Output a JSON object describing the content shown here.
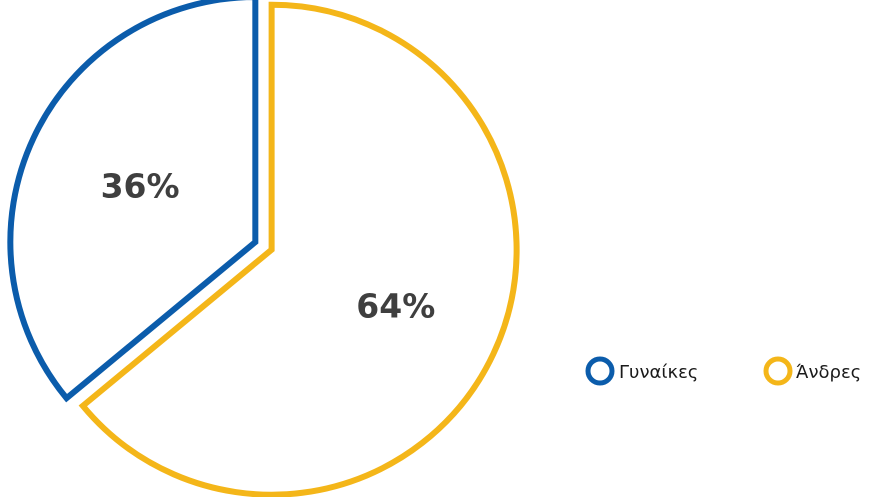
{
  "chart_data": {
    "type": "pie",
    "title": "",
    "slices": [
      {
        "label": "Γυναίκες",
        "value": 36,
        "display": "36%",
        "color": "#0b5cab"
      },
      {
        "label": "Άνδρες",
        "value": 64,
        "display": "64%",
        "color": "#f4b619"
      }
    ],
    "style": "outline",
    "legend_position": "bottom-right"
  }
}
